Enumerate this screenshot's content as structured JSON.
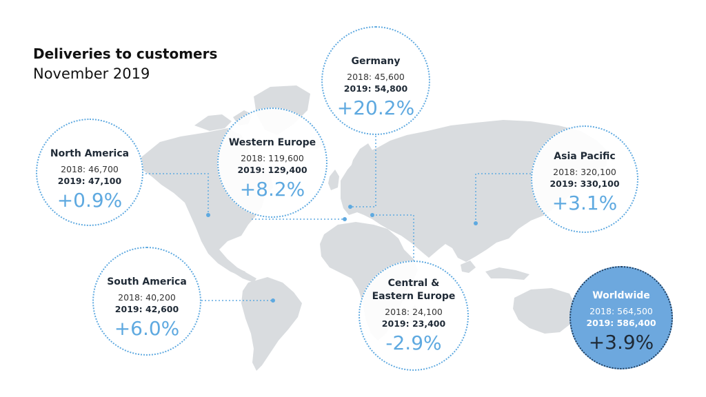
{
  "title": "Deliveries to customers",
  "subtitle": "November 2019",
  "colors": {
    "accent": "#5ea9e0",
    "map": "#d9dcdf",
    "worldwide_fill": "#6da8de"
  },
  "regions": {
    "north_america": {
      "name": "North America",
      "y2018": "2018: 46,700",
      "y2019": "2019: 47,100",
      "change": "+0.9%"
    },
    "western_europe": {
      "name": "Western Europe",
      "y2018": "2018: 119,600",
      "y2019": "2019: 129,400",
      "change": "+8.2%"
    },
    "germany": {
      "name": "Germany",
      "y2018": "2018: 45,600",
      "y2019": "2019: 54,800",
      "change": "+20.2%"
    },
    "asia_pacific": {
      "name": "Asia Pacific",
      "y2018": "2018: 320,100",
      "y2019": "2019: 330,100",
      "change": "+3.1%"
    },
    "south_america": {
      "name": "South America",
      "y2018": "2018: 40,200",
      "y2019": "2019: 42,600",
      "change": "+6.0%"
    },
    "central_eastern_europe": {
      "name_line1": "Central &",
      "name_line2": "Eastern Europe",
      "y2018": "2018: 24,100",
      "y2019": "2019: 23,400",
      "change": "-2.9%"
    },
    "worldwide": {
      "name": "Worldwide",
      "y2018": "2018: 564,500",
      "y2019": "2019: 586,400",
      "change": "+3.9%"
    }
  }
}
